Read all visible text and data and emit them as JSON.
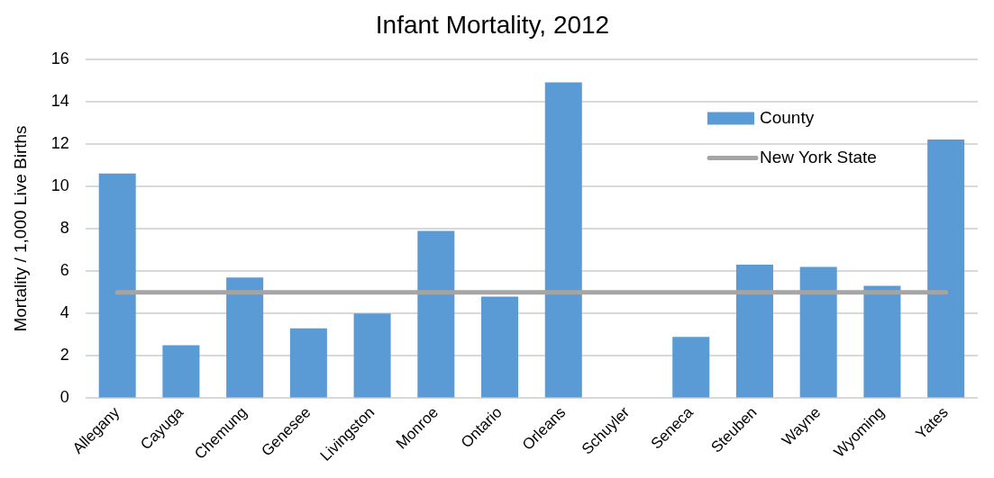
{
  "chart_data": {
    "type": "bar",
    "title": "Infant Mortality, 2012",
    "ylabel": "Mortality / 1,000 Live Births",
    "categories": [
      "Allegany",
      "Cayuga",
      "Chemung",
      "Genesee",
      "Livingston",
      "Monroe",
      "Ontario",
      "Orleans",
      "Schuyler",
      "Seneca",
      "Steuben",
      "Wayne",
      "Wyoming",
      "Yates"
    ],
    "series": [
      {
        "name": "County",
        "color": "#5b9bd5",
        "values": [
          10.6,
          2.5,
          5.7,
          3.3,
          4.0,
          7.9,
          4.8,
          14.9,
          null,
          2.9,
          6.3,
          6.2,
          5.3,
          12.2
        ]
      },
      {
        "name": "New York State",
        "type": "line",
        "color": "#a5a5a5",
        "values": [
          5,
          5,
          5,
          5,
          5,
          5,
          5,
          5,
          5,
          5,
          5,
          5,
          5,
          5
        ]
      }
    ],
    "ylim": [
      0,
      16
    ],
    "yticks": [
      0,
      2,
      4,
      6,
      8,
      10,
      12,
      14,
      16
    ],
    "grid": "y",
    "legend": "top right"
  }
}
